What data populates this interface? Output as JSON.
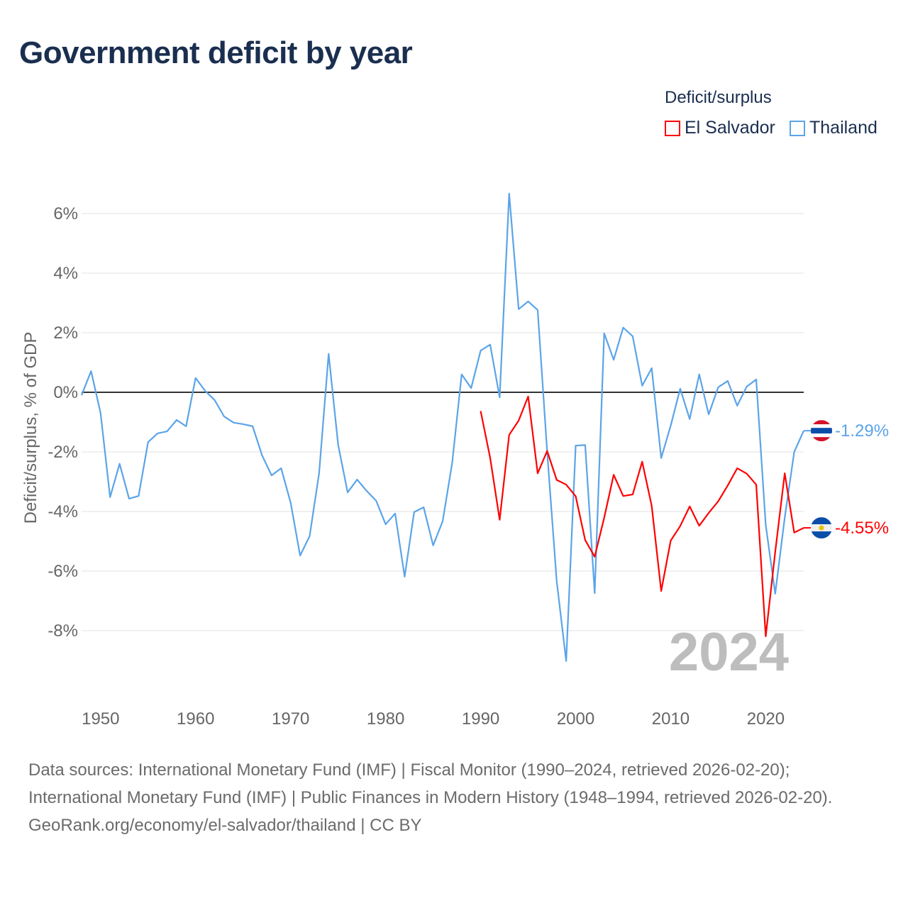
{
  "title": "Government deficit by year",
  "legend": {
    "title": "Deficit/surplus",
    "items": [
      "El Salvador",
      "Thailand"
    ]
  },
  "footer": {
    "sources": "Data sources: International Monetary Fund (IMF) | Fiscal Monitor (1990–2024, retrieved 2026-02-20); International Monetary Fund (IMF) | Public Finances in Modern History (1948–1994, retrieved 2026-02-20).",
    "credit": "GeoRank.org/economy/el-salvador/thailand | CC BY"
  },
  "chart_data": {
    "type": "line",
    "title": "Government deficit by year",
    "xlabel": "",
    "ylabel": "Deficit/surplus, % of GDP",
    "xlim": [
      1948,
      2024
    ],
    "ylim": [
      -10,
      7
    ],
    "x_ticks": [
      1950,
      1960,
      1970,
      1980,
      1990,
      2000,
      2010,
      2020
    ],
    "y_ticks": [
      6,
      4,
      2,
      0,
      -2,
      -4,
      -6,
      -8
    ],
    "y_tick_labels": [
      "6%",
      "4%",
      "2%",
      "0%",
      "-2%",
      "-4%",
      "-6%",
      "-8%"
    ],
    "grid": true,
    "legend_position": "top-right",
    "current_year_label": "2024",
    "series": [
      {
        "name": "Thailand",
        "color": "#5ba4e8",
        "end_label": "-1.29%",
        "flag": "thailand-flag",
        "x_start": 1948,
        "values": [
          -0.1,
          0.71,
          -0.7,
          -3.52,
          -2.4,
          -3.57,
          -3.48,
          -1.67,
          -1.38,
          -1.31,
          -0.93,
          -1.14,
          0.48,
          0.05,
          -0.26,
          -0.81,
          -1.02,
          -1.07,
          -1.14,
          -2.12,
          -2.79,
          -2.55,
          -3.7,
          -5.48,
          -4.83,
          -2.71,
          1.29,
          -1.76,
          -3.36,
          -2.93,
          -3.31,
          -3.64,
          -4.43,
          -4.07,
          -6.19,
          -4.02,
          -3.86,
          -5.14,
          -4.33,
          -2.38,
          0.6,
          0.14,
          1.4,
          1.6,
          -0.17,
          6.67,
          2.79,
          3.05,
          2.76,
          -2.0,
          -6.33,
          -9.02,
          -1.79,
          -1.77,
          -6.74,
          1.98,
          1.09,
          2.17,
          1.88,
          0.22,
          0.81,
          -2.21,
          -1.12,
          0.12,
          -0.9,
          0.6,
          -0.74,
          0.17,
          0.38,
          -0.45,
          0.19,
          0.43,
          -4.45,
          -6.76,
          -4.21,
          -2.0,
          -1.29
        ]
      },
      {
        "name": "El Salvador",
        "color": "#ff0000",
        "end_label": "-4.55%",
        "flag": "el-salvador-flag",
        "x_start": 1990,
        "values": [
          -0.63,
          -2.2,
          -4.28,
          -1.43,
          -0.95,
          -0.14,
          -2.72,
          -1.97,
          -2.94,
          -3.1,
          -3.49,
          -4.96,
          -5.52,
          -4.21,
          -2.77,
          -3.48,
          -3.43,
          -2.33,
          -3.81,
          -6.67,
          -4.98,
          -4.49,
          -3.83,
          -4.48,
          -4.05,
          -3.66,
          -3.13,
          -2.55,
          -2.73,
          -3.1,
          -8.19,
          -5.36,
          -2.72,
          -4.71,
          -4.55
        ]
      }
    ]
  }
}
